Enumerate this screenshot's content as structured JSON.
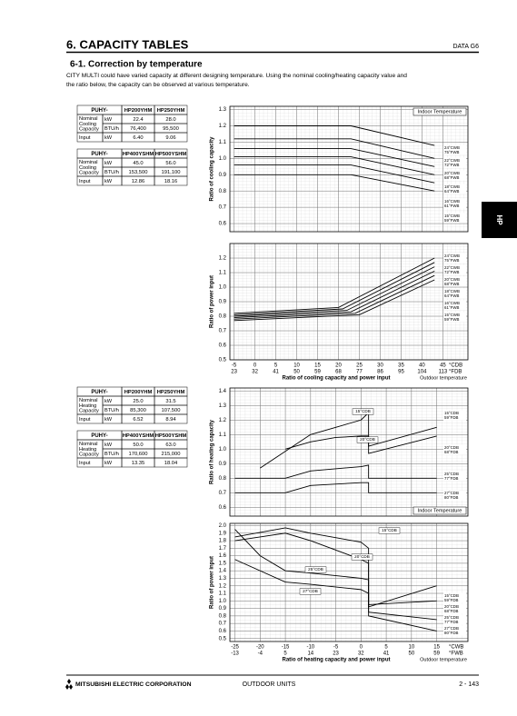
{
  "header": {
    "title": "6. CAPACITY TABLES",
    "code": "DATA G6"
  },
  "section": {
    "title": "6-1. Correction by temperature",
    "text_lines": [
      "CITY MULTI could have varied capacity at different designing temperature. Using the nominal cooling/heating capacity value and",
      "the ratio below, the capacity can be observed at various temperature."
    ]
  },
  "side_tab": "HP",
  "tables": [
    {
      "model_label": "PUHY-",
      "models": [
        "HP200YHM",
        "HP250YHM"
      ],
      "rows": [
        {
          "label": [
            "Nominal",
            "Cooling",
            "Capacity"
          ],
          "units": [
            "kW",
            "BTU/h"
          ],
          "values": [
            [
              "22.4",
              "28.0"
            ],
            [
              "76,400",
              "95,500"
            ]
          ]
        },
        {
          "label": [
            "Input"
          ],
          "units": [
            "kW"
          ],
          "values": [
            [
              "6.40",
              "9.06"
            ]
          ]
        }
      ]
    },
    {
      "model_label": "PUHY-",
      "models": [
        "HP400YSHM",
        "HP500YSHM"
      ],
      "rows": [
        {
          "label": [
            "Nominal",
            "Cooling",
            "Capacity"
          ],
          "units": [
            "kW",
            "BTU/h"
          ],
          "values": [
            [
              "45.0",
              "56.0"
            ],
            [
              "153,500",
              "191,100"
            ]
          ]
        },
        {
          "label": [
            "Input"
          ],
          "units": [
            "kW"
          ],
          "values": [
            [
              "12.86",
              "18.16"
            ]
          ]
        }
      ]
    },
    {
      "model_label": "PUHY-",
      "models": [
        "HP200YHM",
        "HP250YHM"
      ],
      "rows": [
        {
          "label": [
            "Nominal",
            "Heating",
            "Capacity"
          ],
          "units": [
            "kW",
            "BTU/h"
          ],
          "values": [
            [
              "25.0",
              "31.5"
            ],
            [
              "85,300",
              "107,500"
            ]
          ]
        },
        {
          "label": [
            "Input"
          ],
          "units": [
            "kW"
          ],
          "values": [
            [
              "6.52",
              "8.94"
            ]
          ]
        }
      ]
    },
    {
      "model_label": "PUHY-",
      "models": [
        "HP400YSHM",
        "HP500YSHM"
      ],
      "rows": [
        {
          "label": [
            "Nominal",
            "Heating",
            "Capacity"
          ],
          "units": [
            "kW",
            "BTU/h"
          ],
          "values": [
            [
              "50.0",
              "63.0"
            ],
            [
              "170,600",
              "215,000"
            ]
          ]
        },
        {
          "label": [
            "Input"
          ],
          "units": [
            "kW"
          ],
          "values": [
            [
              "13.35",
              "18.04"
            ]
          ]
        }
      ]
    }
  ],
  "cooling": {
    "legend_title": "Indoor Temperature",
    "xlim": [
      -6,
      51
    ],
    "xticks": [
      -5,
      0,
      5,
      10,
      15,
      20,
      25,
      30,
      35,
      40,
      45
    ],
    "xticks_f": [
      23,
      32,
      41,
      50,
      59,
      68,
      77,
      86,
      95,
      104,
      113
    ],
    "x_unit": "°CDB",
    "x_unit_f": "°FDB",
    "xlabel": "Ratio of cooling capacity and power input",
    "xnote": "Outdoor temperature",
    "capacity": {
      "ylabel": "Ratio of cooling capacity",
      "ylim": [
        0.55,
        1.32
      ],
      "yticks": [
        0.6,
        0.7,
        0.8,
        0.9,
        {
          "value": 1,
          "label": "1.0"
        },
        1.1,
        1.2,
        1.3
      ],
      "lines": [
        {
          "label": [
            "24°CWB",
            "75°FWB"
          ],
          "x": [
            -5,
            23,
            43
          ],
          "values": [
            1.2,
            1.2,
            1.08
          ]
        },
        {
          "label": [
            "22°CWB",
            "72°FWB"
          ],
          "x": [
            -5,
            23,
            43
          ],
          "values": [
            1.12,
            1.12,
            1.0
          ]
        },
        {
          "label": [
            "20°CWB",
            "68°FWB"
          ],
          "x": [
            -5,
            23,
            43
          ],
          "values": [
            1.06,
            1.06,
            0.95
          ]
        },
        {
          "label": [
            "18°CWB",
            "64°FWB"
          ],
          "x": [
            -5,
            23,
            43
          ],
          "values": [
            1.01,
            1.01,
            0.9
          ]
        },
        {
          "label": [
            "16°CWB",
            "61°FWB"
          ],
          "x": [
            -5,
            23,
            43
          ],
          "values": [
            0.96,
            0.96,
            0.85
          ]
        },
        {
          "label": [
            "15°CWB",
            "59°FWB"
          ],
          "x": [
            -5,
            23,
            43
          ],
          "values": [
            0.9,
            0.9,
            0.8
          ]
        }
      ]
    },
    "power": {
      "ylabel": "Ratio of power input",
      "ylim": [
        0.5,
        1.3
      ],
      "yticks": [
        0.5,
        0.6,
        0.7,
        0.8,
        0.9,
        {
          "value": 1,
          "label": "1.0"
        },
        1.1,
        1.2
      ],
      "lines": [
        {
          "label": [
            "24°CWB",
            "75°FWB"
          ],
          "x": [
            -5,
            20,
            43
          ],
          "values": [
            0.82,
            0.86,
            1.2
          ]
        },
        {
          "label": [
            "22°CWB",
            "72°FWB"
          ],
          "x": [
            -5,
            21,
            43
          ],
          "values": [
            0.81,
            0.85,
            1.17
          ]
        },
        {
          "label": [
            "20°CWB",
            "68°FWB"
          ],
          "x": [
            -5,
            22,
            43
          ],
          "values": [
            0.8,
            0.84,
            1.14
          ]
        },
        {
          "label": [
            "18°CWB",
            "64°FWB"
          ],
          "x": [
            -5,
            23,
            43
          ],
          "values": [
            0.79,
            0.83,
            1.11
          ]
        },
        {
          "label": [
            "16°CWB",
            "61°FWB"
          ],
          "x": [
            -5,
            24,
            43
          ],
          "values": [
            0.78,
            0.82,
            1.08
          ]
        },
        {
          "label": [
            "15°CWB",
            "59°FWB"
          ],
          "x": [
            -5,
            25,
            43
          ],
          "values": [
            0.77,
            0.81,
            1.05
          ]
        }
      ]
    }
  },
  "heating": {
    "legend_title": "Indoor Temperature",
    "xlim": [
      -26,
      21.2
    ],
    "xticks": [
      -25,
      -20,
      -15,
      -10,
      -5,
      0,
      5,
      10,
      15
    ],
    "xticks_f": [
      -13,
      -4,
      5,
      14,
      23,
      32,
      41,
      50,
      59
    ],
    "x_unit": "°CWB",
    "x_unit_f": "°FWB",
    "xlabel": "Ratio of heating capacity and power input",
    "xnote": "Outdoor temperature",
    "capacity": {
      "ylabel": "Ratio of heating capacity",
      "ylim": [
        0.54,
        1.42
      ],
      "yticks": [
        0.6,
        0.7,
        0.8,
        0.9,
        {
          "value": 1,
          "label": "1.0"
        },
        1.1,
        1.2,
        1.3,
        1.4
      ],
      "annotations": [
        "15°CDB",
        "20°CDB"
      ],
      "lines": [
        {
          "label": [
            "15°CDB",
            "59°FDB"
          ],
          "x": [
            -20,
            -10,
            -5,
            0,
            1.5,
            1.5,
            15
          ],
          "values": [
            0.87,
            1.1,
            1.15,
            1.2,
            1.25,
            1.02,
            1.15
          ]
        },
        {
          "label": [
            "20°CDB",
            "68°FDB"
          ],
          "x": [
            -15,
            -10,
            -5,
            0,
            1.5,
            1.5,
            15
          ],
          "values": [
            1.0,
            1.05,
            1.08,
            1.09,
            1.09,
            0.97,
            1.09
          ]
        },
        {
          "label": [
            "25°CDB",
            "77°FDB"
          ],
          "x": [
            -25,
            -15,
            -10,
            0,
            1.5,
            1.5,
            15
          ],
          "values": [
            0.8,
            0.8,
            0.85,
            0.88,
            0.89,
            0.8,
            0.8
          ]
        },
        {
          "label": [
            "27°CDB",
            "80°FDB"
          ],
          "x": [
            -25,
            -15,
            -10,
            0,
            1.5,
            1.5,
            15
          ],
          "values": [
            0.7,
            0.7,
            0.75,
            0.77,
            0.77,
            0.7,
            0.7
          ]
        }
      ]
    },
    "power": {
      "ylabel": "Ratio of power input",
      "ylim": [
        0.46,
        2.03
      ],
      "yticks": [
        0.5,
        0.6,
        0.7,
        0.8,
        0.9,
        {
          "value": 1,
          "label": "1.0"
        },
        1.1,
        1.2,
        1.3,
        1.4,
        1.5,
        1.6,
        1.7,
        1.8,
        1.9,
        {
          "value": 2,
          "label": "2.0"
        }
      ],
      "annotations": [
        "15°CDB",
        "20°CDB",
        "25°CDB",
        "27°CDB"
      ],
      "lines": [
        {
          "label": [
            "15°CDB",
            "59°FDB"
          ],
          "x": [
            -25,
            -15,
            -10,
            0,
            1.5,
            1.5,
            15
          ],
          "values": [
            1.85,
            1.97,
            1.9,
            1.78,
            1.7,
            0.92,
            1.2
          ]
        },
        {
          "label": [
            "20°CDB",
            "68°FDB"
          ],
          "x": [
            -25,
            -20,
            -15,
            -10,
            0,
            1.5,
            1.5,
            15
          ],
          "values": [
            1.8,
            1.85,
            1.9,
            1.8,
            1.55,
            1.5,
            0.95,
            1.0
          ]
        },
        {
          "label": [
            "25°CDB",
            "77°FDB"
          ],
          "x": [
            -25,
            -20,
            -15,
            -10,
            0,
            1.5,
            1.5,
            15
          ],
          "values": [
            1.95,
            1.6,
            1.4,
            1.37,
            1.3,
            1.28,
            0.85,
            0.75
          ]
        },
        {
          "label": [
            "27°CDB",
            "80°FDB"
          ],
          "x": [
            -25,
            -15,
            -10,
            0,
            1.5,
            1.5,
            15
          ],
          "values": [
            1.55,
            1.25,
            1.22,
            1.15,
            1.1,
            0.8,
            0.6
          ]
        }
      ]
    }
  },
  "footer": {
    "company": "MITSUBISHI ELECTRIC CORPORATION",
    "section": "OUTDOOR UNITS",
    "page": "2 - 143"
  }
}
